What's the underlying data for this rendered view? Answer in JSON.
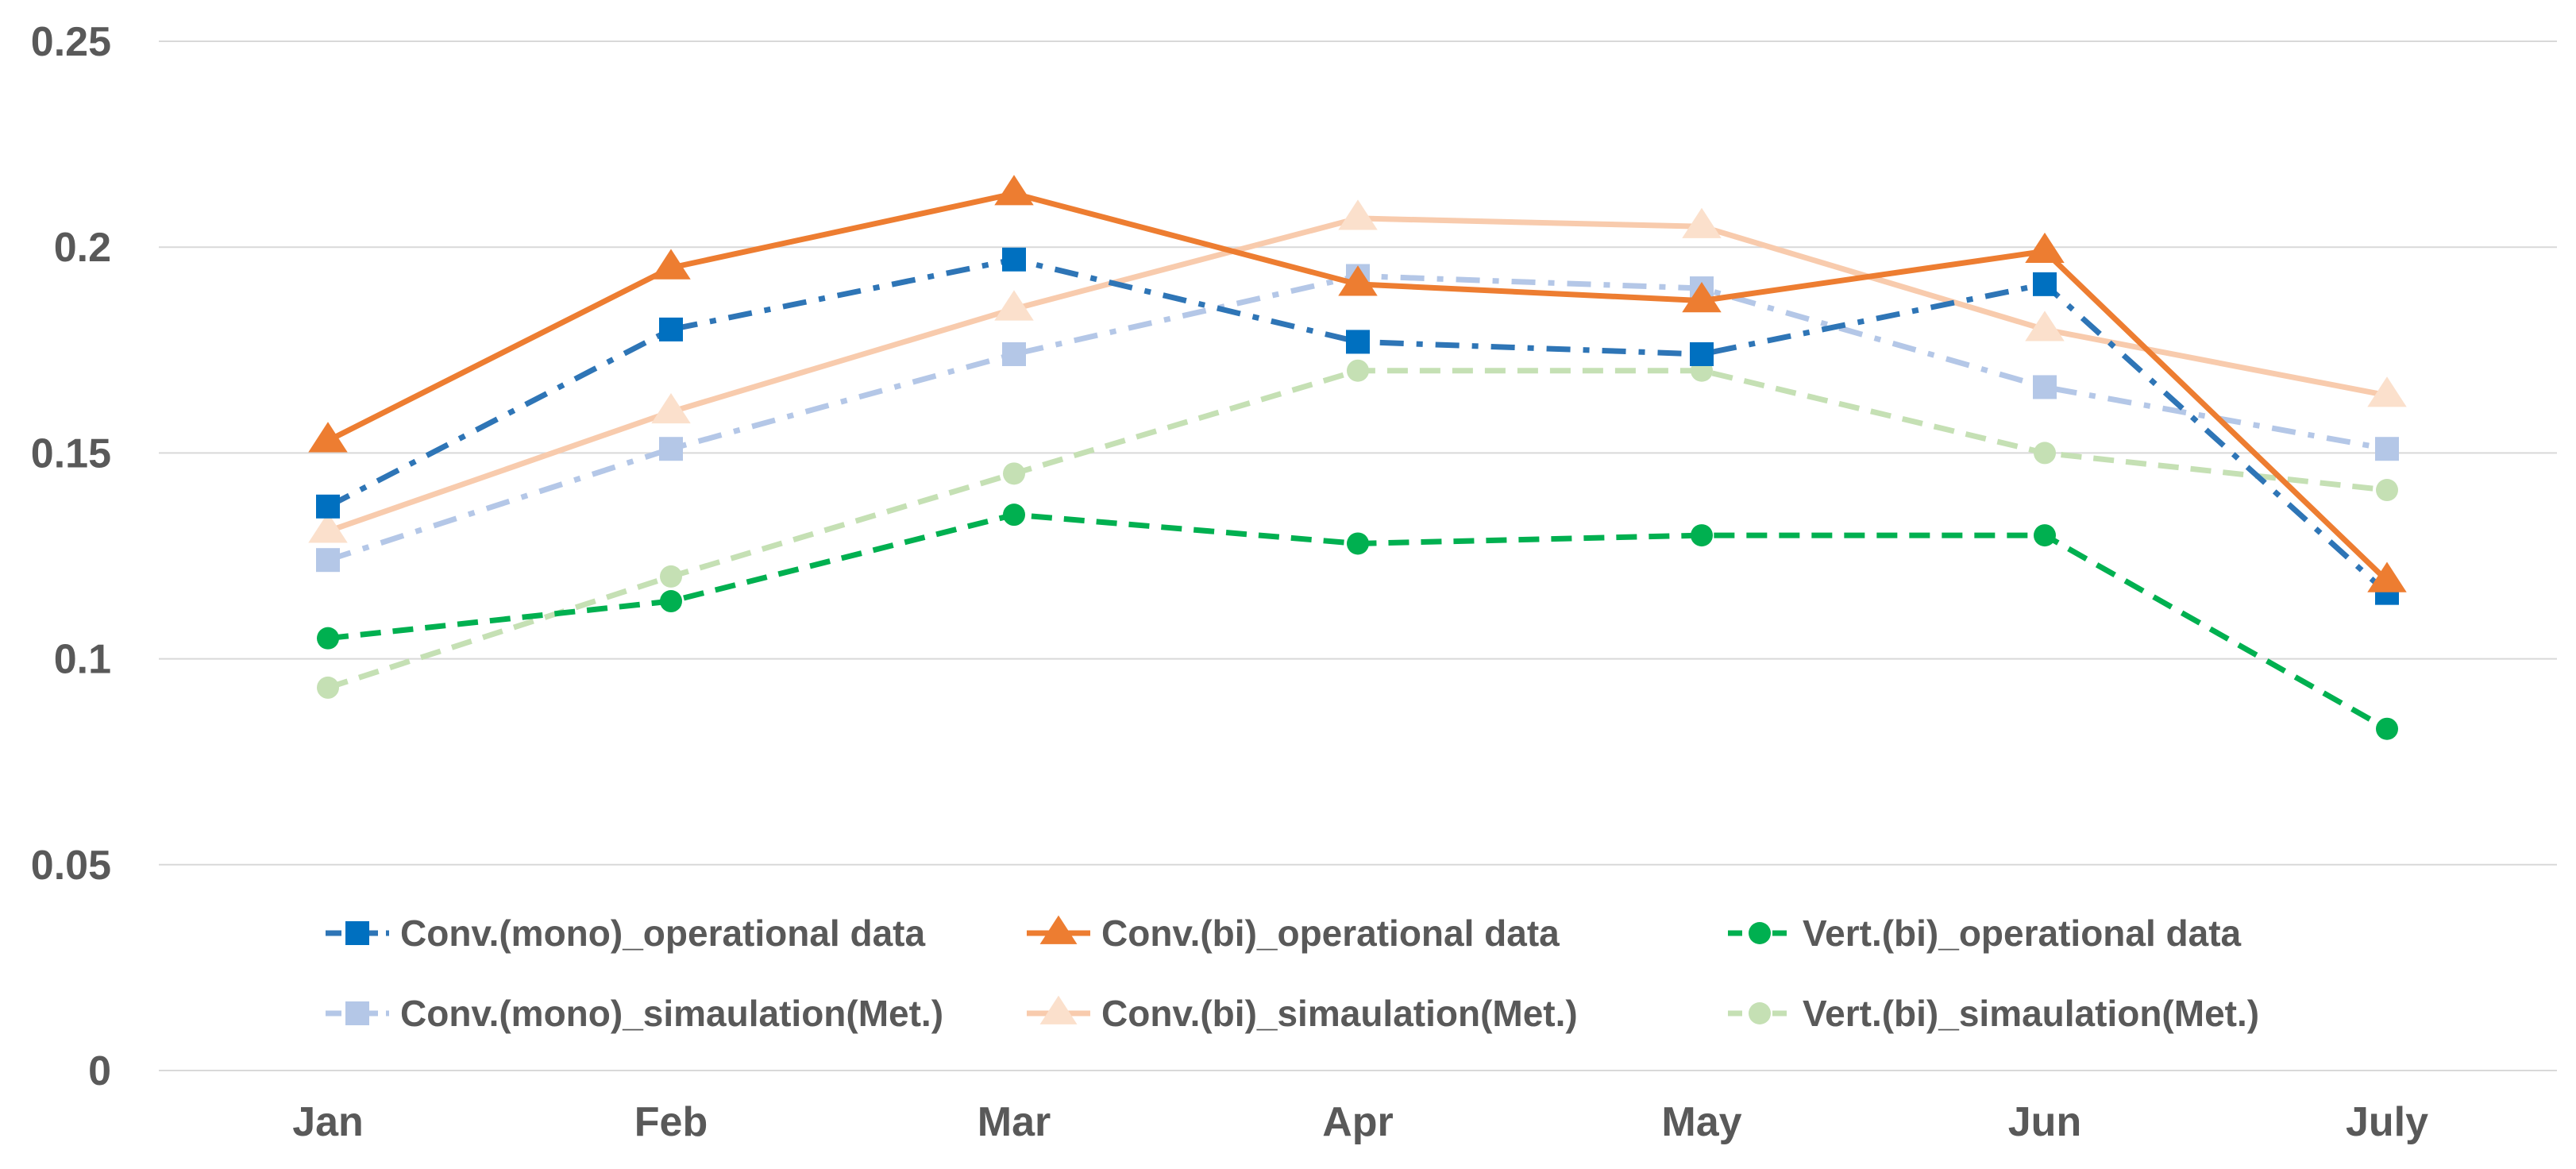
{
  "chart_data": {
    "type": "line",
    "title": "",
    "xlabel": "",
    "ylabel": "",
    "categories": [
      "Jan",
      "Feb",
      "Mar",
      "Apr",
      "May",
      "Jun",
      "July"
    ],
    "ylim": [
      0,
      0.25
    ],
    "y_ticks": [
      0,
      0.05,
      0.1,
      0.15,
      0.2,
      0.25
    ],
    "y_tick_labels": [
      "0",
      "0.05",
      "0.1",
      "0.15",
      "0.2",
      "0.25"
    ],
    "grid": true,
    "legend_position": "bottom-inside",
    "series": [
      {
        "name": "Conv.(mono)_operational data",
        "values": [
          0.137,
          0.18,
          0.197,
          0.177,
          0.174,
          0.191,
          0.116
        ],
        "color": "#2E75B6",
        "marker_color": "#0070C0",
        "marker": "square",
        "line_style": "dash-dot"
      },
      {
        "name": "Conv.(bi)_operational data",
        "values": [
          0.153,
          0.195,
          0.213,
          0.191,
          0.187,
          0.199,
          0.119
        ],
        "color": "#ED7D31",
        "marker_color": "#ED7D31",
        "marker": "triangle",
        "line_style": "solid"
      },
      {
        "name": "Vert.(bi)_operational data",
        "values": [
          0.105,
          0.114,
          0.135,
          0.128,
          0.13,
          0.13,
          0.083
        ],
        "color": "#00B050",
        "marker_color": "#00B050",
        "marker": "circle",
        "line_style": "dash"
      },
      {
        "name": "Conv.(mono)_simaulation(Met.)",
        "values": [
          0.124,
          0.151,
          0.174,
          0.193,
          0.19,
          0.166,
          0.151
        ],
        "color": "#B4C7E7",
        "marker_color": "#B4C7E7",
        "marker": "square",
        "line_style": "dash-dot"
      },
      {
        "name": "Conv.(bi)_simaulation(Met.)",
        "values": [
          0.131,
          0.16,
          0.185,
          0.207,
          0.205,
          0.18,
          0.164
        ],
        "color": "#F8CBAD",
        "marker_color": "#FBE0CC",
        "marker": "triangle",
        "line_style": "solid"
      },
      {
        "name": "Vert.(bi)_simaulation(Met.)",
        "values": [
          0.093,
          0.12,
          0.145,
          0.17,
          0.17,
          0.15,
          0.141
        ],
        "color": "#C5E0B4",
        "marker_color": "#C5E0B4",
        "marker": "circle",
        "line_style": "dash"
      }
    ]
  }
}
